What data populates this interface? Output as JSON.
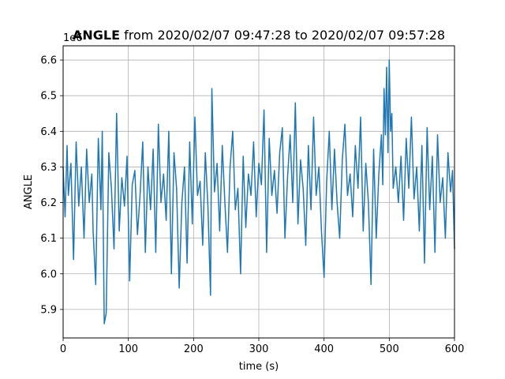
{
  "chart_data": {
    "type": "line",
    "title_bold": "ANGLE",
    "title_rest": " from 2020/02/07 09:47:28 to 2020/02/07 09:57:28",
    "offset_text": "1e6",
    "xlabel": "time (s)",
    "ylabel": "ANGLE",
    "xlim": [
      0,
      600
    ],
    "ylim": [
      5.82,
      6.64
    ],
    "x_ticks": [
      0,
      100,
      200,
      300,
      400,
      500,
      600
    ],
    "x_tick_labels": [
      "0",
      "100",
      "200",
      "300",
      "400",
      "500",
      "600"
    ],
    "y_ticks": [
      5.9,
      6.0,
      6.1,
      6.2,
      6.3,
      6.4,
      6.5,
      6.6
    ],
    "y_tick_labels": [
      "5.9",
      "6.0",
      "6.1",
      "6.2",
      "6.3",
      "6.4",
      "6.5",
      "6.6"
    ],
    "y_scale_multiplier": 1000000,
    "grid": true,
    "line_color": "#1f77b4",
    "series": [
      {
        "x": [
          0,
          3,
          6,
          8,
          12,
          16,
          20,
          24,
          28,
          32,
          36,
          40,
          44,
          46,
          50,
          54,
          58,
          60,
          63,
          66,
          70,
          74,
          78,
          82,
          86,
          90,
          94,
          98,
          102,
          106,
          110,
          114,
          118,
          122,
          126,
          130,
          134,
          138,
          142,
          146,
          150,
          154,
          158,
          162,
          166,
          170,
          174,
          178,
          182,
          186,
          190,
          194,
          198,
          202,
          206,
          210,
          214,
          218,
          222,
          226,
          228,
          232,
          236,
          240,
          244,
          248,
          252,
          256,
          260,
          264,
          268,
          272,
          276,
          280,
          284,
          288,
          292,
          296,
          300,
          304,
          308,
          312,
          316,
          320,
          324,
          328,
          332,
          336,
          340,
          344,
          348,
          352,
          356,
          360,
          364,
          368,
          372,
          376,
          380,
          384,
          388,
          392,
          396,
          400,
          404,
          408,
          412,
          416,
          420,
          424,
          428,
          432,
          436,
          440,
          444,
          448,
          452,
          456,
          460,
          464,
          468,
          472,
          476,
          480,
          484,
          488,
          490,
          492,
          494,
          496,
          498,
          500,
          502,
          504,
          506,
          510,
          514,
          518,
          522,
          526,
          530,
          534,
          538,
          542,
          546,
          550,
          554,
          558,
          562,
          566,
          570,
          574,
          578,
          582,
          586,
          590,
          594,
          597,
          600
        ],
        "y": [
          6.3,
          6.16,
          6.36,
          6.22,
          6.31,
          6.04,
          6.37,
          6.19,
          6.3,
          6.1,
          6.35,
          6.2,
          6.28,
          6.12,
          5.97,
          6.38,
          6.18,
          6.4,
          5.86,
          5.89,
          6.34,
          6.24,
          6.07,
          6.45,
          6.12,
          6.27,
          6.19,
          6.33,
          5.98,
          6.25,
          6.29,
          6.11,
          6.22,
          6.37,
          6.06,
          6.3,
          6.18,
          6.35,
          6.06,
          6.42,
          6.2,
          6.28,
          6.15,
          6.4,
          6.0,
          6.34,
          6.24,
          5.96,
          6.2,
          6.3,
          6.03,
          6.37,
          6.14,
          6.44,
          6.22,
          6.26,
          6.08,
          6.34,
          6.19,
          5.94,
          6.52,
          6.23,
          6.31,
          6.12,
          6.36,
          6.2,
          6.06,
          6.3,
          6.4,
          6.18,
          6.24,
          6.0,
          6.33,
          6.13,
          6.28,
          6.22,
          6.37,
          6.16,
          6.31,
          6.25,
          6.46,
          6.06,
          6.38,
          6.22,
          6.29,
          6.17,
          6.34,
          6.41,
          6.1,
          6.27,
          6.39,
          6.2,
          6.48,
          6.14,
          6.32,
          6.24,
          6.08,
          6.36,
          6.18,
          6.44,
          6.22,
          6.3,
          6.12,
          5.99,
          6.26,
          6.4,
          6.18,
          6.35,
          6.2,
          6.1,
          6.32,
          6.42,
          6.22,
          6.28,
          6.16,
          6.36,
          6.24,
          6.44,
          6.12,
          6.31,
          6.2,
          5.97,
          6.35,
          6.1,
          6.28,
          6.39,
          6.25,
          6.52,
          6.39,
          6.58,
          6.34,
          6.6,
          6.4,
          6.45,
          6.24,
          6.3,
          6.2,
          6.33,
          6.15,
          6.38,
          6.24,
          6.44,
          6.21,
          6.3,
          6.12,
          6.36,
          6.03,
          6.41,
          6.18,
          6.33,
          6.06,
          6.39,
          6.2,
          6.27,
          6.1,
          6.34,
          6.23,
          6.29,
          6.07
        ]
      }
    ]
  }
}
